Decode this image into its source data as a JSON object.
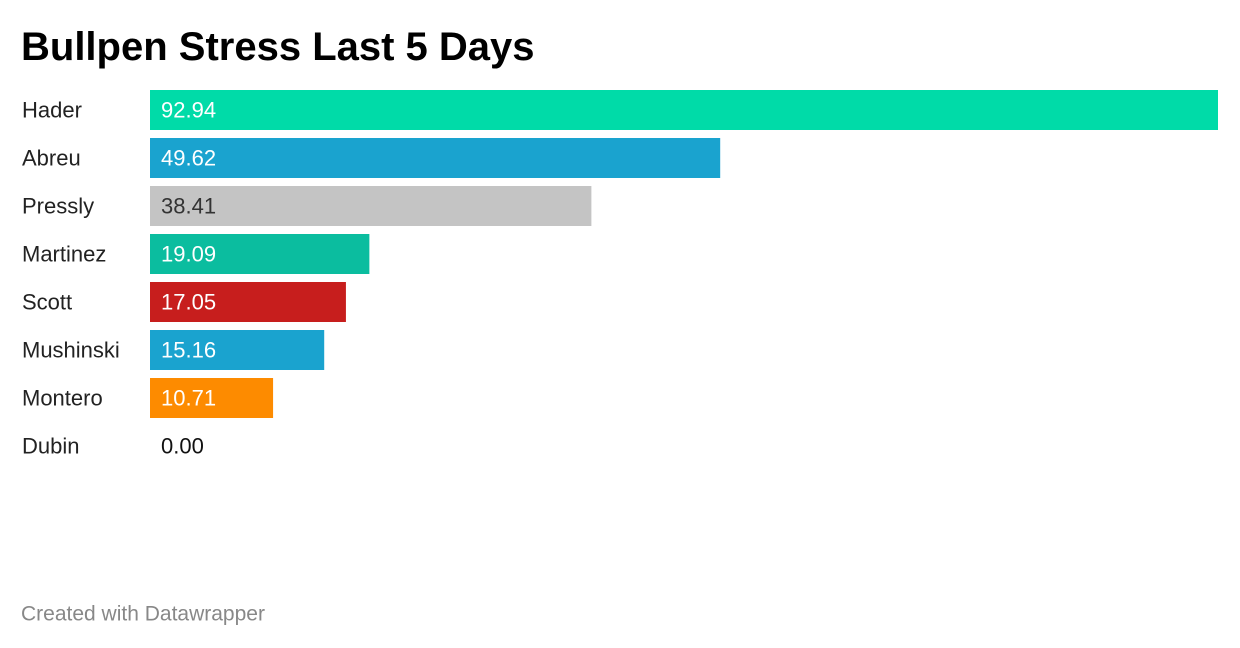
{
  "chart_data": {
    "type": "bar",
    "orientation": "horizontal",
    "title": "Bullpen Stress Last 5 Days",
    "categories": [
      "Hader",
      "Abreu",
      "Pressly",
      "Martinez",
      "Scott",
      "Mushinski",
      "Montero",
      "Dubin"
    ],
    "values": [
      92.94,
      49.62,
      38.41,
      19.09,
      17.05,
      15.16,
      10.71,
      0
    ],
    "value_labels": [
      "92.94",
      "49.62",
      "38.41",
      "19.09",
      "17.05",
      "15.16",
      "10.71",
      "0.00"
    ],
    "colors": [
      "#00dba8",
      "#1aa3cf",
      "#c4c4c4",
      "#0bbd9f",
      "#c71e1d",
      "#1aa3cf",
      "#fd8b00",
      null
    ],
    "footer": "Created with Datawrapper"
  }
}
